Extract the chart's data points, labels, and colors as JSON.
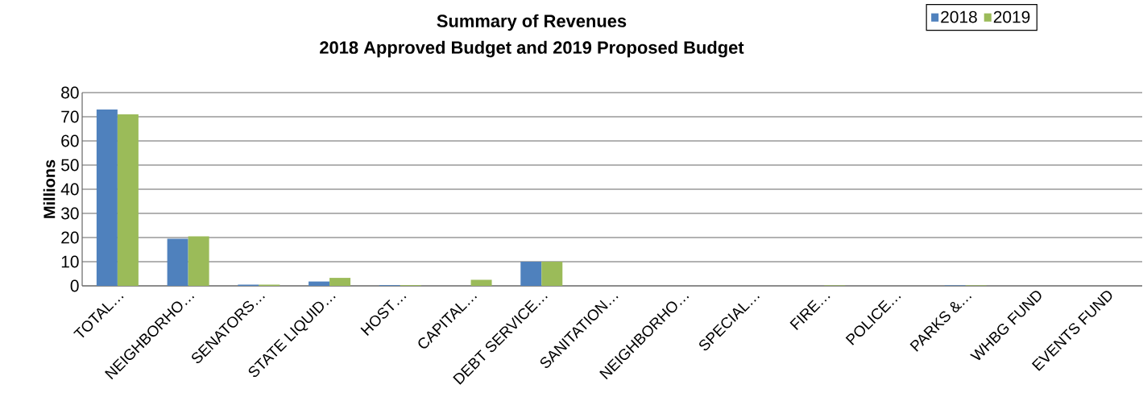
{
  "chart_data": {
    "type": "bar",
    "title": "Summary of Revenues",
    "subtitle": "2018 Approved Budget and 2019 Proposed Budget",
    "ylabel": "Millions",
    "categories": [
      "TOTAL…",
      "NEIGHBORHO…",
      "SENATORS…",
      "STATE LIQUID…",
      "HOST…",
      "CAPITAL…",
      "DEBT SERVICE…",
      "SANITATION…",
      "NEIGHBORHO…",
      "SPECIAL…",
      "FIRE…",
      "POLICE…",
      "PARKS &…",
      "WHBG FUND",
      "EVENTS FUND"
    ],
    "series": [
      {
        "name": "2018",
        "color": "#4f81bd",
        "values": [
          73,
          19.5,
          0.5,
          1.8,
          0.3,
          0,
          10,
          0,
          0,
          0,
          0,
          0,
          0.2,
          0,
          0
        ]
      },
      {
        "name": "2019",
        "color": "#9bbb59",
        "values": [
          71,
          20.5,
          0.5,
          3.3,
          0.3,
          2.5,
          10,
          0,
          0,
          0,
          0.2,
          0,
          0.2,
          0,
          0
        ]
      }
    ],
    "ylim": [
      0,
      80
    ],
    "yticks": [
      0,
      10,
      20,
      30,
      40,
      50,
      60,
      70,
      80
    ],
    "grid": "y",
    "legend": "top right"
  }
}
